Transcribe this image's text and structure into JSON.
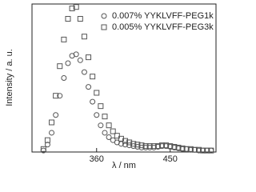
{
  "chart_data": {
    "type": "scatter",
    "xlabel": "λ / nm",
    "ylabel": "Intensity / a. u.",
    "x": [
      295,
      300,
      305,
      310,
      315,
      320,
      325,
      330,
      335,
      340,
      345,
      350,
      355,
      360,
      365,
      370,
      375,
      380,
      385,
      390,
      395,
      400,
      405,
      410,
      415,
      420,
      425,
      430,
      435,
      440,
      445,
      450,
      455,
      460,
      465,
      470,
      475,
      480,
      485,
      490,
      495,
      500
    ],
    "series": [
      {
        "name": "0.007% YYKLVFF-PEG1k",
        "marker": "circle",
        "color": "#555555",
        "values": [
          0.01,
          0.05,
          0.13,
          0.25,
          0.38,
          0.5,
          0.6,
          0.65,
          0.66,
          0.62,
          0.54,
          0.44,
          0.34,
          0.25,
          0.18,
          0.13,
          0.1,
          0.08,
          0.065,
          0.055,
          0.05,
          0.045,
          0.04,
          0.035,
          0.03,
          0.03,
          0.03,
          0.03,
          0.035,
          0.04,
          0.04,
          0.035,
          0.03,
          0.025,
          0.02,
          0.02,
          0.015,
          0.015,
          0.01,
          0.01,
          0.01,
          0.01
        ]
      },
      {
        "name": "0.005% YYKLVFF-PEG3k",
        "marker": "square",
        "color": "#555555",
        "values": [
          0.02,
          0.08,
          0.2,
          0.38,
          0.58,
          0.76,
          0.9,
          0.97,
          0.98,
          0.9,
          0.78,
          0.64,
          0.51,
          0.4,
          0.31,
          0.24,
          0.18,
          0.14,
          0.11,
          0.09,
          0.075,
          0.065,
          0.055,
          0.05,
          0.045,
          0.04,
          0.04,
          0.04,
          0.04,
          0.045,
          0.045,
          0.04,
          0.035,
          0.03,
          0.025,
          0.02,
          0.02,
          0.015,
          0.015,
          0.01,
          0.01,
          0.01
        ]
      }
    ],
    "xlim": [
      281,
      506
    ],
    "xticks": [
      360,
      450
    ],
    "ylim": [
      0,
      1.0
    ],
    "legend": "upper right"
  }
}
